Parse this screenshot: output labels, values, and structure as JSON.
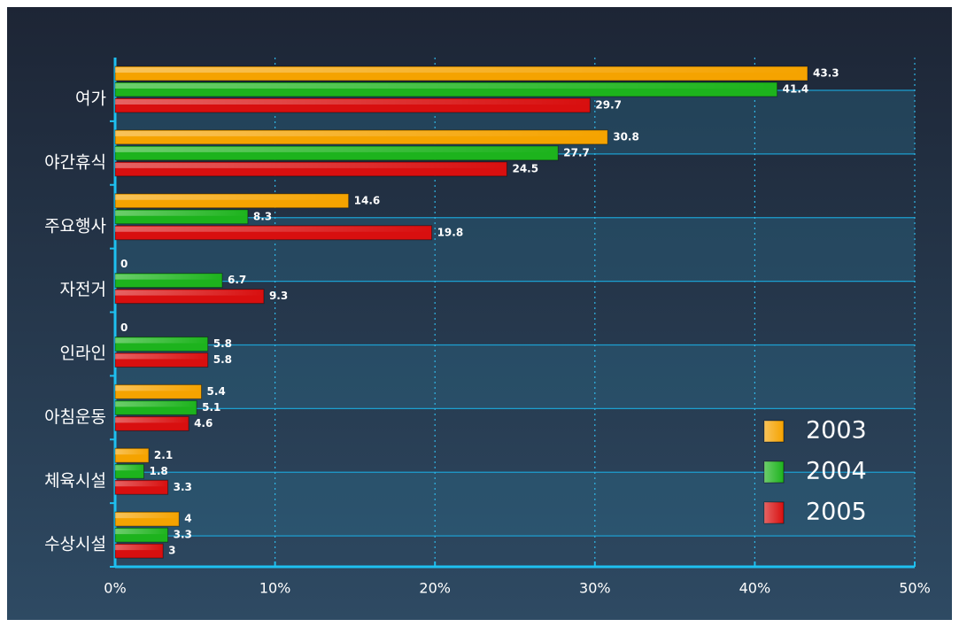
{
  "chart_data": {
    "type": "barh",
    "categories": [
      "여가",
      "야간휴식",
      "주요행사",
      "자전거",
      "인라인",
      "아침운동",
      "체육시설",
      "수상시설"
    ],
    "series": [
      {
        "name": "2003",
        "color": "#f5a300",
        "values": [
          43.3,
          30.8,
          14.6,
          0,
          0,
          5.4,
          2.1,
          4
        ]
      },
      {
        "name": "2004",
        "color": "#1db31d",
        "values": [
          41.4,
          27.7,
          8.3,
          6.7,
          5.8,
          5.1,
          1.8,
          3.3
        ]
      },
      {
        "name": "2005",
        "color": "#d80f0f",
        "values": [
          29.7,
          24.5,
          19.8,
          9.3,
          5.8,
          4.6,
          3.3,
          3
        ]
      }
    ],
    "xlim": [
      0,
      50
    ],
    "xticks": [
      {
        "value": 0,
        "label": "0%"
      },
      {
        "value": 10,
        "label": "10%"
      },
      {
        "value": 20,
        "label": "20%"
      },
      {
        "value": 30,
        "label": "30%"
      },
      {
        "value": 40,
        "label": "40%"
      },
      {
        "value": 50,
        "label": "50%"
      }
    ],
    "grid": true,
    "legend": "lower right"
  }
}
